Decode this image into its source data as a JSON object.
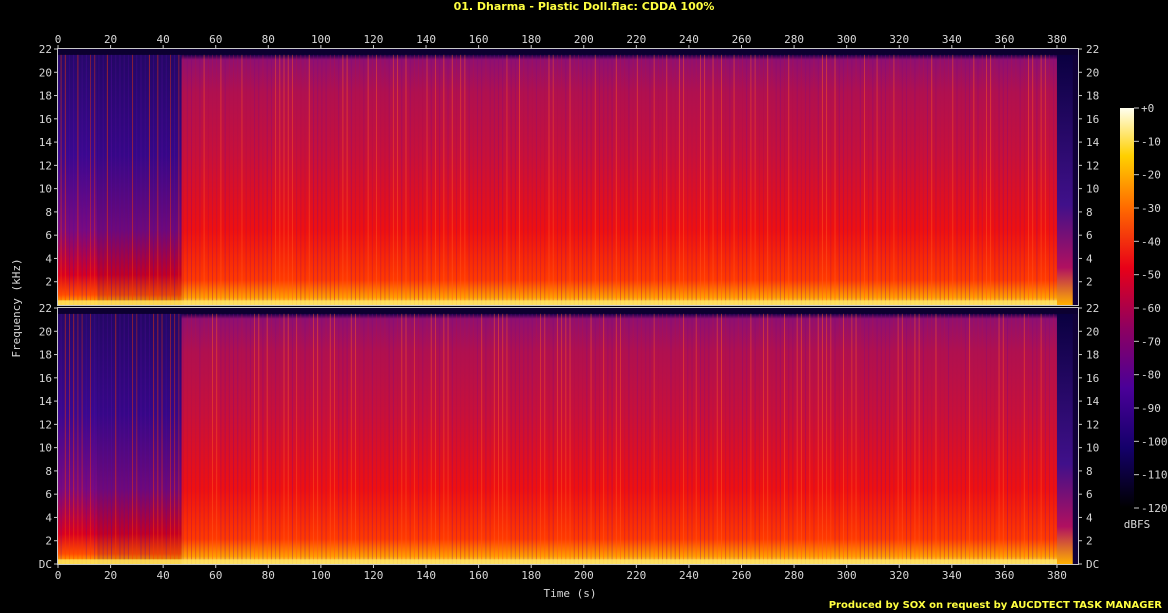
{
  "title": "01. Dharma - Plastic Doll.flac: CDDA 100%",
  "footer": "Produced by SOX on request by AUCDTECT TASK MANAGER",
  "chart_data": {
    "type": "heatmap",
    "title": "01. Dharma - Plastic Doll.flac: CDDA 100%",
    "xlabel": "Time (s)",
    "ylabel": "Frequency (kHz)",
    "xlim": [
      0,
      388
    ],
    "ylim": [
      0,
      22
    ],
    "x_ticks": [
      "0",
      "20",
      "40",
      "60",
      "80",
      "100",
      "120",
      "140",
      "160",
      "180",
      "200",
      "220",
      "240",
      "260",
      "280",
      "300",
      "320",
      "340",
      "360",
      "380"
    ],
    "y_ticks": [
      "DC",
      "2",
      "4",
      "6",
      "8",
      "10",
      "12",
      "14",
      "16",
      "18",
      "20",
      "22"
    ],
    "y_ticks_top": [
      "2",
      "4",
      "6",
      "8",
      "10",
      "12",
      "14",
      "16",
      "18",
      "20",
      "22"
    ],
    "channels": [
      "Channel 1",
      "Channel 2"
    ],
    "colorbar": {
      "label": "dBFS",
      "ticks": [
        "+0",
        "-10",
        "-20",
        "-30",
        "-40",
        "-50",
        "-60",
        "-70",
        "-80",
        "-90",
        "-100",
        "-110",
        "-120"
      ],
      "range": [
        -120,
        0
      ]
    },
    "content_cutoff_khz": 21.5
  }
}
